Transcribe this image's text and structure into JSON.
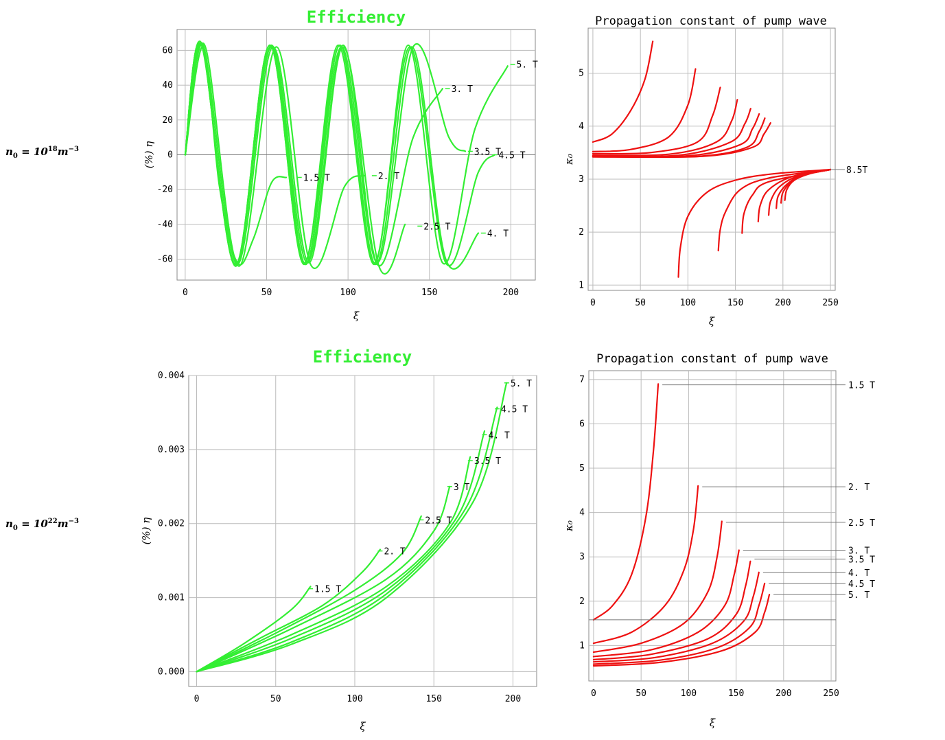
{
  "row_labels": [
    {
      "base": "n",
      "sub": "0",
      "eq": " = 10",
      "exp": "18",
      "unit": "m",
      "unit_exp": "−3"
    },
    {
      "base": "n",
      "sub": "0",
      "eq": " = 10",
      "exp": "22",
      "unit": "m",
      "unit_exp": "−3"
    }
  ],
  "chart_data": [
    {
      "id": "eff-low",
      "type": "line",
      "title": "Efficiency",
      "xlabel": "ξ",
      "ylabel": "(%) η",
      "xlim": [
        -5,
        215
      ],
      "ylim": [
        -72,
        72
      ],
      "xticks": [
        0,
        50,
        100,
        150,
        200
      ],
      "yticks": [
        -60,
        -40,
        -20,
        0,
        20,
        40,
        60
      ],
      "ytick_labels": [
        "-60",
        "-40",
        "-20",
        "0",
        "20",
        "40",
        "60"
      ],
      "grid": true,
      "color": "#33ee33",
      "series": [
        {
          "name": "1.5 T",
          "x": [
            0,
            11,
            21,
            32,
            42,
            53,
            62
          ],
          "y": [
            0,
            62,
            -18,
            -62,
            -48,
            -16,
            -13
          ]
        },
        {
          "name": "2. T",
          "x": [
            0,
            12,
            33,
            56,
            77,
            98,
            110
          ],
          "y": [
            0,
            63,
            -64,
            62,
            -63,
            -18,
            -12
          ]
        },
        {
          "name": "2.5 T",
          "x": [
            0,
            11,
            32,
            54,
            76,
            97,
            119,
            135
          ],
          "y": [
            0,
            63,
            -63,
            62,
            -62,
            62,
            -64,
            -40
          ]
        },
        {
          "name": "3. T",
          "x": [
            0,
            10,
            31,
            53,
            75,
            97,
            118,
            140,
            158
          ],
          "y": [
            0,
            64,
            -64,
            63,
            -62,
            63,
            -63,
            10,
            38
          ]
        },
        {
          "name": "3.5 T",
          "x": [
            0,
            10,
            31,
            53,
            74,
            96,
            118,
            140,
            162,
            172
          ],
          "y": [
            0,
            64,
            -63,
            62,
            -63,
            62,
            -62,
            62,
            10,
            2
          ]
        },
        {
          "name": "4. T",
          "x": [
            0,
            10,
            31,
            52,
            74,
            95,
            117,
            139,
            160,
            180
          ],
          "y": [
            0,
            64,
            -64,
            63,
            -63,
            63,
            -63,
            62,
            -60,
            -45
          ]
        },
        {
          "name": "4.5 T",
          "x": [
            0,
            10,
            31,
            52,
            73,
            95,
            116,
            138,
            160,
            180,
            190
          ],
          "y": [
            0,
            63,
            -63,
            63,
            -62,
            63,
            -62,
            62,
            -62,
            -10,
            0
          ]
        },
        {
          "name": "5. T",
          "x": [
            0,
            10,
            31,
            52,
            73,
            94,
            116,
            137,
            158,
            178,
            198
          ],
          "y": [
            0,
            64,
            -63,
            63,
            -63,
            63,
            -63,
            63,
            -62,
            15,
            51
          ]
        }
      ],
      "labels": [
        {
          "text": "1.5 T",
          "x": 72,
          "y": -13
        },
        {
          "text": "2. T",
          "x": 118,
          "y": -12
        },
        {
          "text": "2.5 T",
          "x": 146,
          "y": -41
        },
        {
          "text": "3. T",
          "x": 163,
          "y": 38
        },
        {
          "text": "3.5 T",
          "x": 177,
          "y": 2
        },
        {
          "text": "4. T",
          "x": 185,
          "y": -45
        },
        {
          "text": "4.5 T",
          "x": 192,
          "y": 0
        },
        {
          "text": "5. T",
          "x": 203,
          "y": 52
        }
      ]
    },
    {
      "id": "kappa-low",
      "type": "line",
      "title": "Propagation constant of pump wave",
      "xlabel": "ξ",
      "ylabel": "κ₀",
      "xlim": [
        -5,
        255
      ],
      "ylim": [
        0.9,
        5.85
      ],
      "xticks": [
        0,
        50,
        100,
        150,
        200,
        250
      ],
      "yticks": [
        1,
        2,
        3,
        4,
        5
      ],
      "grid": true,
      "color": "#ee1111",
      "upper": [
        {
          "x": [
            0,
            20,
            40,
            55,
            63
          ],
          "y": [
            3.7,
            3.85,
            4.3,
            4.9,
            5.6
          ]
        },
        {
          "x": [
            0,
            40,
            80,
            100,
            108
          ],
          "y": [
            3.52,
            3.56,
            3.8,
            4.4,
            5.08
          ]
        },
        {
          "x": [
            0,
            60,
            110,
            126,
            134
          ],
          "y": [
            3.48,
            3.5,
            3.7,
            4.2,
            4.73
          ]
        },
        {
          "x": [
            0,
            80,
            130,
            146,
            152
          ],
          "y": [
            3.45,
            3.47,
            3.7,
            4.1,
            4.5
          ]
        },
        {
          "x": [
            0,
            90,
            145,
            160,
            166
          ],
          "y": [
            3.44,
            3.45,
            3.7,
            4.05,
            4.33
          ]
        },
        {
          "x": [
            0,
            100,
            155,
            168,
            175
          ],
          "y": [
            3.43,
            3.44,
            3.65,
            3.95,
            4.23
          ]
        },
        {
          "x": [
            0,
            110,
            162,
            175,
            181
          ],
          "y": [
            3.42,
            3.43,
            3.6,
            3.9,
            4.15
          ]
        },
        {
          "x": [
            0,
            115,
            168,
            180,
            187
          ],
          "y": [
            3.42,
            3.43,
            3.6,
            3.85,
            4.06
          ]
        }
      ],
      "lower": [
        {
          "x": [
            90,
            92,
            100,
            120,
            150,
            190,
            250
          ],
          "y": [
            1.15,
            1.7,
            2.3,
            2.75,
            2.98,
            3.1,
            3.18
          ]
        },
        {
          "x": [
            132,
            134,
            140,
            155,
            185,
            250
          ],
          "y": [
            1.65,
            2.05,
            2.4,
            2.8,
            3.02,
            3.18
          ]
        },
        {
          "x": [
            157,
            159,
            168,
            185,
            250
          ],
          "y": [
            1.98,
            2.35,
            2.7,
            2.95,
            3.18
          ]
        },
        {
          "x": [
            174,
            176,
            185,
            210,
            250
          ],
          "y": [
            2.2,
            2.5,
            2.8,
            3.05,
            3.18
          ]
        },
        {
          "x": [
            185,
            187,
            196,
            215,
            250
          ],
          "y": [
            2.32,
            2.58,
            2.85,
            3.05,
            3.18
          ]
        },
        {
          "x": [
            193,
            195,
            204,
            220,
            250
          ],
          "y": [
            2.45,
            2.68,
            2.9,
            3.07,
            3.18
          ]
        },
        {
          "x": [
            198,
            200,
            209,
            225,
            250
          ],
          "y": [
            2.55,
            2.75,
            2.95,
            3.1,
            3.18
          ]
        },
        {
          "x": [
            202,
            204,
            212,
            228,
            250
          ],
          "y": [
            2.6,
            2.8,
            2.98,
            3.1,
            3.18
          ]
        }
      ],
      "labels": [
        {
          "text": "8.5T",
          "x": 250,
          "y": 3.18
        }
      ]
    },
    {
      "id": "eff-high",
      "type": "line",
      "title": "Efficiency",
      "xlabel": "ξ",
      "ylabel": "(%) η",
      "xlim": [
        -5,
        215
      ],
      "ylim": [
        -0.0002,
        0.004
      ],
      "xticks": [
        0,
        50,
        100,
        150,
        200
      ],
      "yticks": [
        0,
        0.001,
        0.002,
        0.003,
        0.004
      ],
      "ytick_labels": [
        "0.000",
        "0.001",
        "0.002",
        "0.003",
        "0.004"
      ],
      "grid": true,
      "color": "#33ee33",
      "series": [
        {
          "name": "1.5 T",
          "x": [
            0,
            30,
            60,
            72
          ],
          "y": [
            0,
            0.00038,
            0.00084,
            0.00115
          ]
        },
        {
          "name": "2. T",
          "x": [
            0,
            40,
            80,
            105,
            116
          ],
          "y": [
            0,
            0.00045,
            0.0009,
            0.00135,
            0.00165
          ]
        },
        {
          "name": "2.5 T",
          "x": [
            0,
            50,
            100,
            130,
            142
          ],
          "y": [
            0,
            0.00052,
            0.0011,
            0.0016,
            0.0021
          ]
        },
        {
          "name": "3. T",
          "x": [
            0,
            60,
            120,
            150,
            160
          ],
          "y": [
            0,
            0.00058,
            0.00125,
            0.0019,
            0.0025
          ]
        },
        {
          "name": "3.5 T",
          "x": [
            0,
            60,
            120,
            160,
            173
          ],
          "y": [
            0,
            0.0005,
            0.00115,
            0.002,
            0.0029
          ]
        },
        {
          "name": "4. T",
          "x": [
            0,
            60,
            120,
            165,
            182
          ],
          "y": [
            0,
            0.00045,
            0.0011,
            0.0021,
            0.00325
          ]
        },
        {
          "name": "4.5 T",
          "x": [
            0,
            60,
            120,
            170,
            190
          ],
          "y": [
            0,
            0.0004,
            0.00105,
            0.0022,
            0.00357
          ]
        },
        {
          "name": "5. T",
          "x": [
            0,
            60,
            120,
            175,
            196
          ],
          "y": [
            0,
            0.00037,
            0.001,
            0.0023,
            0.0039
          ]
        }
      ],
      "labels": [
        {
          "text": "1.5 T",
          "x": 74,
          "y": 0.00112
        },
        {
          "text": "2. T",
          "x": 118,
          "y": 0.00163
        },
        {
          "text": "2.5 T",
          "x": 144,
          "y": 0.00205
        },
        {
          "text": "3 T",
          "x": 162,
          "y": 0.0025
        },
        {
          "text": "3.5 T",
          "x": 175,
          "y": 0.00285
        },
        {
          "text": "4. T",
          "x": 184,
          "y": 0.0032
        },
        {
          "text": "4.5 T",
          "x": 192,
          "y": 0.00355
        },
        {
          "text": "5. T",
          "x": 198,
          "y": 0.0039
        }
      ]
    },
    {
      "id": "kappa-high",
      "type": "line",
      "title": "Propagation constant of pump wave",
      "xlabel": "ξ",
      "ylabel": "κ₀",
      "xlim": [
        -5,
        255
      ],
      "ylim": [
        0.2,
        7.2
      ],
      "xticks": [
        0,
        50,
        100,
        150,
        200,
        250
      ],
      "yticks": [
        1,
        2,
        3,
        4,
        5,
        6,
        7
      ],
      "grid": true,
      "color": "#ee1111",
      "series": [
        {
          "name": "1.5 T",
          "x": [
            0,
            20,
            40,
            55,
            63,
            68
          ],
          "y": [
            1.58,
            1.9,
            2.6,
            3.9,
            5.4,
            6.9
          ]
        },
        {
          "name": "2. T",
          "x": [
            0,
            40,
            75,
            95,
            105,
            110
          ],
          "y": [
            1.05,
            1.3,
            1.9,
            2.7,
            3.6,
            4.6
          ]
        },
        {
          "name": "2.5 T",
          "x": [
            0,
            50,
            95,
            120,
            130,
            135
          ],
          "y": [
            0.85,
            1.05,
            1.5,
            2.2,
            3.0,
            3.8
          ]
        },
        {
          "name": "3. T",
          "x": [
            0,
            60,
            110,
            138,
            148,
            153
          ],
          "y": [
            0.75,
            0.9,
            1.3,
            1.9,
            2.6,
            3.15
          ]
        },
        {
          "name": "3.5 T",
          "x": [
            0,
            60,
            120,
            150,
            160,
            165
          ],
          "y": [
            0.68,
            0.8,
            1.15,
            1.7,
            2.35,
            2.9
          ]
        },
        {
          "name": "4. T",
          "x": [
            0,
            65,
            125,
            158,
            168,
            174
          ],
          "y": [
            0.63,
            0.73,
            1.05,
            1.55,
            2.1,
            2.65
          ]
        },
        {
          "name": "4.5 T",
          "x": [
            0,
            70,
            130,
            164,
            174,
            180
          ],
          "y": [
            0.58,
            0.67,
            0.95,
            1.4,
            1.9,
            2.4
          ]
        },
        {
          "name": "5. T",
          "x": [
            0,
            70,
            135,
            170,
            180,
            185
          ],
          "y": [
            0.54,
            0.62,
            0.88,
            1.3,
            1.75,
            2.15
          ]
        }
      ],
      "labels": [
        {
          "text": "1.5 T",
          "y": 6.88
        },
        {
          "text": "2. T",
          "y": 4.58
        },
        {
          "text": "2.5 T",
          "y": 3.78
        },
        {
          "text": "3. T",
          "y": 3.15
        },
        {
          "text": "3.5 T",
          "y": 2.95
        },
        {
          "text": "4. T",
          "y": 2.65
        },
        {
          "text": "4.5 T",
          "y": 2.4
        },
        {
          "text": "5. T",
          "y": 2.15
        }
      ]
    }
  ]
}
